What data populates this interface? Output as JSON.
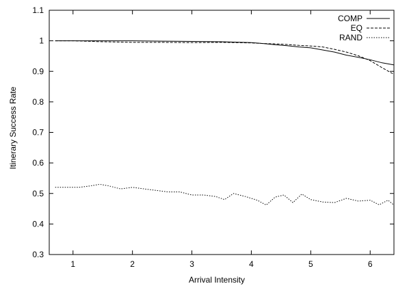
{
  "chart_data": {
    "type": "line",
    "title": "",
    "xlabel": "Arrival Intensity",
    "ylabel": "Itinerary Success Rate",
    "xlim": [
      0.6,
      6.4
    ],
    "ylim": [
      0.3,
      1.1
    ],
    "xticks": [
      1,
      2,
      3,
      4,
      5,
      6
    ],
    "yticks": [
      0.3,
      0.4,
      0.5,
      0.6,
      0.7,
      0.8,
      0.9,
      1,
      1.1
    ],
    "grid": false,
    "legend": "top-right",
    "series": [
      {
        "name": "COMP",
        "style": "solid",
        "x": [
          0.7,
          1.0,
          1.5,
          2.0,
          2.5,
          3.0,
          3.5,
          4.0,
          4.2,
          4.4,
          4.6,
          4.8,
          5.0,
          5.2,
          5.4,
          5.6,
          5.8,
          6.0,
          6.2,
          6.4
        ],
        "y": [
          1.0,
          1.0,
          1.0,
          1.0,
          0.999,
          0.998,
          0.997,
          0.994,
          0.991,
          0.987,
          0.984,
          0.98,
          0.977,
          0.97,
          0.963,
          0.953,
          0.946,
          0.938,
          0.928,
          0.921
        ]
      },
      {
        "name": "EQ",
        "style": "dashed",
        "x": [
          0.7,
          1.0,
          1.5,
          2.0,
          2.5,
          3.0,
          3.5,
          4.0,
          4.2,
          4.4,
          4.6,
          4.8,
          5.0,
          5.2,
          5.4,
          5.6,
          5.8,
          6.0,
          6.2,
          6.4
        ],
        "y": [
          1.0,
          1.0,
          0.997,
          0.995,
          0.995,
          0.994,
          0.995,
          0.993,
          0.991,
          0.99,
          0.988,
          0.985,
          0.983,
          0.98,
          0.972,
          0.963,
          0.951,
          0.935,
          0.912,
          0.89
        ]
      },
      {
        "name": "RAND",
        "style": "dotted",
        "x": [
          0.7,
          0.9,
          1.1,
          1.3,
          1.45,
          1.6,
          1.8,
          2.0,
          2.2,
          2.4,
          2.6,
          2.8,
          3.0,
          3.2,
          3.4,
          3.55,
          3.7,
          3.9,
          4.1,
          4.25,
          4.4,
          4.55,
          4.7,
          4.85,
          5.0,
          5.2,
          5.4,
          5.6,
          5.8,
          6.0,
          6.15,
          6.3,
          6.4
        ],
        "y": [
          0.52,
          0.52,
          0.52,
          0.525,
          0.53,
          0.525,
          0.515,
          0.52,
          0.515,
          0.51,
          0.505,
          0.505,
          0.495,
          0.495,
          0.49,
          0.48,
          0.5,
          0.49,
          0.478,
          0.462,
          0.488,
          0.495,
          0.47,
          0.498,
          0.48,
          0.472,
          0.47,
          0.484,
          0.475,
          0.478,
          0.463,
          0.478,
          0.462
        ]
      }
    ]
  }
}
